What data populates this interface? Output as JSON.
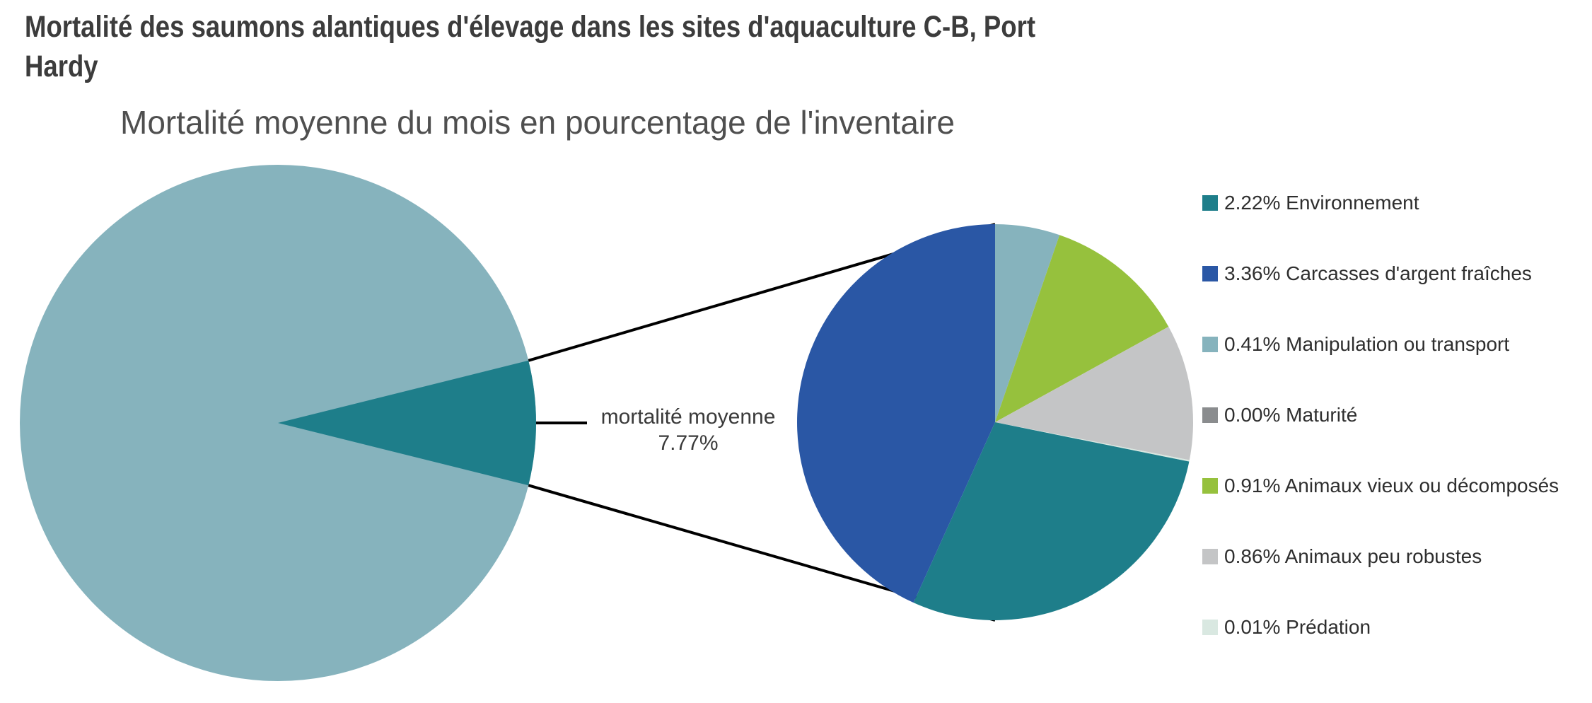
{
  "page": {
    "title": "Mortalité des saumons alantiques d'élevage dans les sites d'aquaculture C-B, Port Hardy",
    "subtitle": "Mortalité moyenne du mois en pourcentage de l'inventaire"
  },
  "colors": {
    "title_text": "#3C3C3C",
    "subtitle_text": "#4F4F4F",
    "callout_text": "#3A3A3A",
    "legend_text": "#2E2E2E",
    "connector_line": "#000000",
    "background": "#FFFFFF"
  },
  "chart_data": {
    "type": "pie",
    "variant": "pie-of-pie",
    "title": "Mortalité moyenne du mois en pourcentage de l'inventaire",
    "units": "% of inventory",
    "legend_position": "right",
    "center_label": {
      "line1": "mortalité moyenne",
      "line2": "7.77%"
    },
    "big_pie": {
      "slices": [
        {
          "key": "mortalite-moyenne",
          "label": "mortalité moyenne",
          "value": 7.77,
          "color": "#1E7E8A"
        },
        {
          "key": "reste-inventaire",
          "label": "",
          "value": 92.23,
          "color": "#86B3BD"
        }
      ],
      "wedge_centered_at_deg": 90
    },
    "small_pie": {
      "total": 7.77,
      "slices": [
        {
          "key": "environnement",
          "pct": "2.22%",
          "label": "Environnement",
          "value": 2.22,
          "color": "#1E7E8A"
        },
        {
          "key": "carcasses-argent-fraiches",
          "pct": "3.36%",
          "label": "Carcasses d'argent fraîches",
          "value": 3.36,
          "color": "#2A57A5"
        },
        {
          "key": "manipulation-transport",
          "pct": "0.41%",
          "label": "Manipulation ou transport",
          "value": 0.41,
          "color": "#86B3BD"
        },
        {
          "key": "maturite",
          "pct": "0.00%",
          "label": "Maturité",
          "value": 0.0,
          "color": "#8A8C8E"
        },
        {
          "key": "animaux-vieux-decomposes",
          "pct": "0.91%",
          "label": "Animaux vieux ou décomposés",
          "value": 0.91,
          "color": "#96C13D"
        },
        {
          "key": "animaux-peu-robustes",
          "pct": "0.86%",
          "label": "Animaux peu robustes",
          "value": 0.86,
          "color": "#C4C5C6"
        },
        {
          "key": "predation",
          "pct": "0.01%",
          "label": "Prédation",
          "value": 0.01,
          "color": "#D9E8E1"
        }
      ],
      "draw_order": [
        "manipulation-transport",
        "maturite",
        "animaux-vieux-decomposes",
        "animaux-peu-robustes",
        "predation",
        "environnement",
        "carcasses-argent-fraiches"
      ],
      "start_angle_deg": 0
    }
  }
}
